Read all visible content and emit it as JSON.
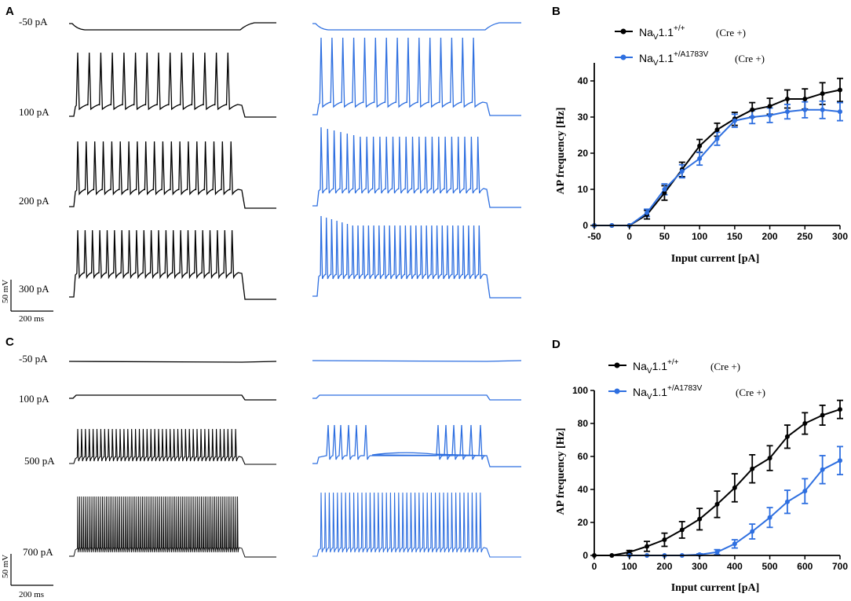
{
  "panels": {
    "A": "A",
    "B": "B",
    "C": "C",
    "D": "D"
  },
  "colors": {
    "wt": "#000000",
    "mut": "#2e6fe0"
  },
  "traces": {
    "A": [
      {
        "label": "-50 pA",
        "wt": {
          "type": "hyper"
        },
        "mut": {
          "type": "hyper"
        }
      },
      {
        "label": "100 pA",
        "wt": {
          "type": "spikes",
          "n": 14
        },
        "mut": {
          "type": "spikes",
          "n": 15
        }
      },
      {
        "label": "200 pA",
        "wt": {
          "type": "spikes",
          "n": 19
        },
        "mut": {
          "type": "spikes",
          "n": 25
        }
      },
      {
        "label": "300 pA",
        "wt": {
          "type": "spikes",
          "n": 22
        },
        "mut": {
          "type": "spikes",
          "n": 31
        }
      }
    ],
    "C": [
      {
        "label": "-50 pA",
        "wt": {
          "type": "flat"
        },
        "mut": {
          "type": "flat"
        }
      },
      {
        "label": "100 pA",
        "wt": {
          "type": "step"
        },
        "mut": {
          "type": "step"
        }
      },
      {
        "label": "500 pA",
        "wt": {
          "type": "spikes",
          "n": 42
        },
        "mut": {
          "type": "burst"
        }
      },
      {
        "label": "700 pA",
        "wt": {
          "type": "spikes",
          "n": 85
        },
        "mut": {
          "type": "spikes",
          "n": 40
        }
      }
    ]
  },
  "scalebar": {
    "voltage": "50 mV",
    "time": "200 ms"
  },
  "chart_data": [
    {
      "panel": "B",
      "type": "line",
      "xlabel": "Input current [pA]",
      "ylabel": "AP frequency [Hz]",
      "xlim": [
        -50,
        300
      ],
      "ylim": [
        0,
        45
      ],
      "xticks": [
        -50,
        0,
        50,
        100,
        150,
        200,
        250,
        300
      ],
      "yticks": [
        0,
        10,
        20,
        30,
        40
      ],
      "legend": [
        {
          "gene": "Na",
          "sub": "V",
          "rest": "1.1",
          "sup": "+/+",
          "cre": "(Cre +)"
        },
        {
          "gene": "Na",
          "sub": "V",
          "rest": "1.1",
          "sup": "+/A1783V",
          "cre": "(Cre +)"
        }
      ],
      "series": [
        {
          "name": "NaV1.1+/+ (Cre +)",
          "x": [
            -50,
            -25,
            0,
            25,
            50,
            75,
            100,
            125,
            150,
            175,
            200,
            225,
            250,
            275,
            300
          ],
          "values": [
            0,
            0,
            0,
            3,
            9,
            15.5,
            22,
            26.5,
            29.5,
            32,
            33,
            35,
            35,
            36.5,
            37.5
          ],
          "errors": [
            0,
            0,
            0,
            1.2,
            2,
            2,
            1.8,
            1.8,
            1.8,
            2,
            2.2,
            2.5,
            2.8,
            3,
            3.2
          ]
        },
        {
          "name": "NaV1.1+/A1783V (Cre +)",
          "x": [
            -50,
            -25,
            0,
            25,
            50,
            75,
            100,
            125,
            150,
            175,
            200,
            225,
            250,
            275,
            300
          ],
          "values": [
            0,
            0,
            0,
            3.5,
            10,
            15,
            18.5,
            24,
            29,
            30,
            30.5,
            31.5,
            32,
            32,
            31.5
          ],
          "errors": [
            0,
            0,
            0,
            1,
            1.5,
            1.8,
            1.8,
            1.8,
            1.8,
            1.8,
            2,
            2,
            2.2,
            2.4,
            2.5
          ]
        }
      ]
    },
    {
      "panel": "D",
      "type": "line",
      "xlabel": "Input current [pA]",
      "ylabel": "AP frequency [Hz]",
      "xlim": [
        0,
        700
      ],
      "ylim": [
        0,
        100
      ],
      "xticks": [
        0,
        100,
        200,
        300,
        400,
        500,
        600,
        700
      ],
      "yticks": [
        0,
        20,
        40,
        60,
        80,
        100
      ],
      "legend": [
        {
          "gene": "Na",
          "sub": "V",
          "rest": "1.1",
          "sup": "+/+",
          "cre": "(Cre +)"
        },
        {
          "gene": "Na",
          "sub": "V",
          "rest": "1.1",
          "sup": "+/A1783V",
          "cre": "(Cre +)"
        }
      ],
      "series": [
        {
          "name": "NaV1.1+/+ (Cre +)",
          "x": [
            0,
            50,
            100,
            150,
            200,
            250,
            300,
            350,
            400,
            450,
            500,
            550,
            600,
            650,
            700
          ],
          "values": [
            0,
            0,
            2,
            5.5,
            9.5,
            15.5,
            22,
            31,
            41,
            52.5,
            59,
            72,
            80,
            85,
            88.5
          ],
          "errors": [
            0,
            0,
            1,
            3,
            4,
            5,
            6.5,
            8,
            8.5,
            8.5,
            7.5,
            7,
            6.5,
            6,
            5.5
          ]
        },
        {
          "name": "NaV1.1+/A1783V (Cre +)",
          "x": [
            100,
            150,
            200,
            250,
            300,
            350,
            400,
            450,
            500,
            550,
            600,
            650,
            700
          ],
          "values": [
            0,
            0,
            0,
            0,
            0.5,
            2,
            7,
            14.5,
            23,
            32.5,
            39,
            52,
            57.5
          ],
          "errors": [
            0,
            0,
            0,
            0,
            0.5,
            1.5,
            2.5,
            4.5,
            6,
            7,
            7.5,
            8.5,
            8.5
          ]
        }
      ]
    }
  ]
}
